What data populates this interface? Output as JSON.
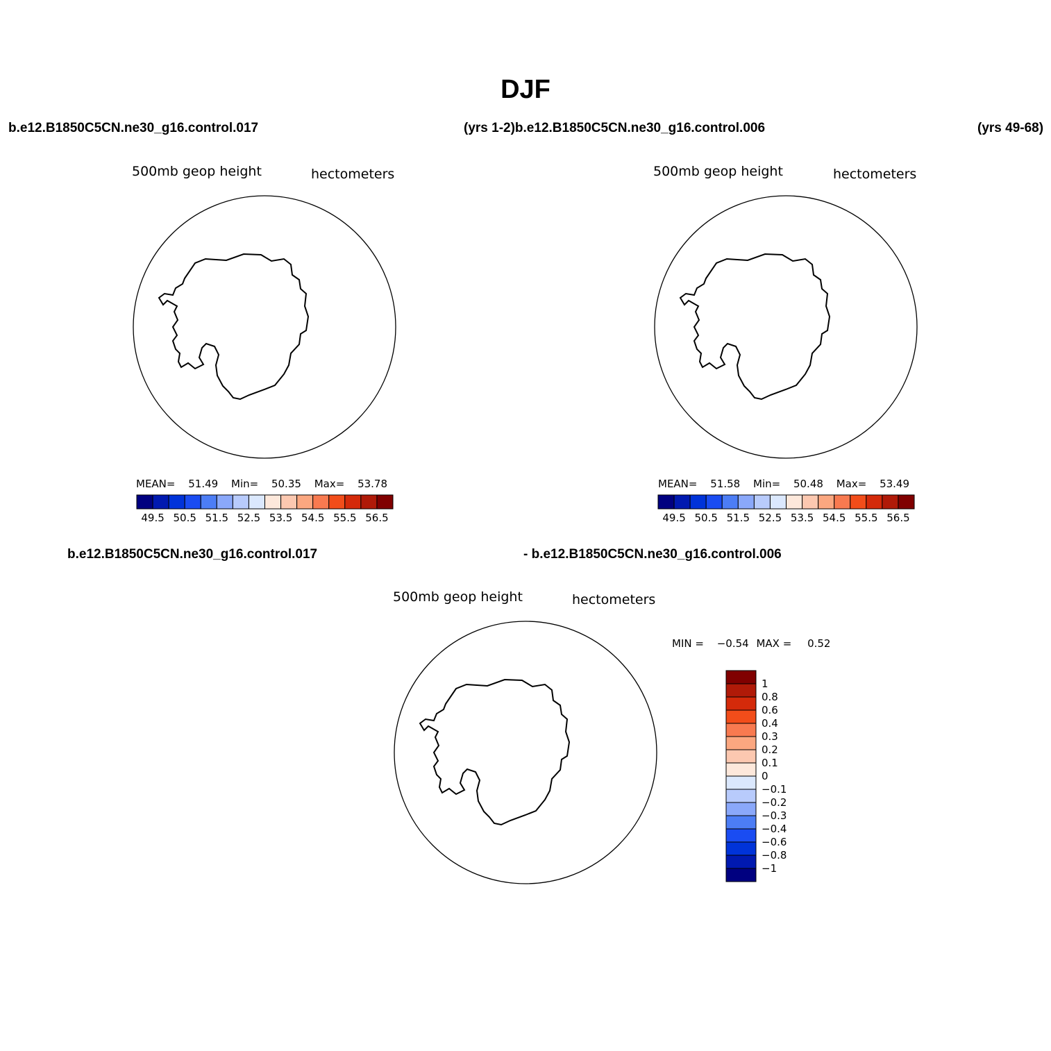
{
  "title": "DJF",
  "top_left_case": "b.e12.B1850C5CN.ne30_g16.control.017",
  "top_mid_case": "(yrs 1-2)b.e12.B1850C5CN.ne30_g16.control.006",
  "top_right_case": "(yrs 49-68)",
  "bottom_case_left": "b.e12.B1850C5CN.ne30_g16.control.017",
  "bottom_case_right": "- b.e12.B1850C5CN.ne30_g16.control.006",
  "panels": [
    {
      "variable": "500mb  geop  height",
      "units": "hectometers",
      "stats": {
        "mean_label": "MEAN=",
        "mean": "51.49",
        "min_label": "Min=",
        "min": "50.35",
        "max_label": "Max=",
        "max": "53.78"
      }
    },
    {
      "variable": "500mb  geop  height",
      "units": "hectometers",
      "stats": {
        "mean_label": "MEAN=",
        "mean": "51.58",
        "min_label": "Min=",
        "min": "50.48",
        "max_label": "Max=",
        "max": "53.49"
      }
    },
    {
      "variable": "500mb  geop  height",
      "units": "hectometers",
      "stats": {
        "min_label": "MIN =",
        "min": "−0.54",
        "max_label": "MAX =",
        "max": "0.52"
      }
    }
  ],
  "field_colorbar": {
    "colors": [
      "#000080",
      "#0019b0",
      "#0033d9",
      "#1a4cf2",
      "#4c7df5",
      "#8aa8fa",
      "#b8cbfc",
      "#dbe8fd",
      "#fde8db",
      "#fcc8b0",
      "#fba780",
      "#f87a50",
      "#f24d1a",
      "#d42a0a",
      "#b01a08",
      "#800000"
    ],
    "tick_labels": [
      "49.5",
      "50.5",
      "51.5",
      "52.5",
      "53.5",
      "54.5",
      "55.5",
      "56.5"
    ]
  },
  "diff_colorbar": {
    "colors": [
      "#000080",
      "#0019b0",
      "#0033d9",
      "#1a4cf2",
      "#4c7df5",
      "#8aa8fa",
      "#b8cbfc",
      "#dbe8fd",
      "#fde8db",
      "#fcc8b0",
      "#fba780",
      "#f87a50",
      "#f24d1a",
      "#d42a0a",
      "#b01a08",
      "#800000"
    ],
    "tick_labels": [
      "1",
      "0.8",
      "0.6",
      "0.4",
      "0.3",
      "0.2",
      "0.1",
      "0",
      "−0.1",
      "−0.2",
      "−0.3",
      "−0.4",
      "−0.6",
      "−0.8",
      "−1"
    ]
  }
}
